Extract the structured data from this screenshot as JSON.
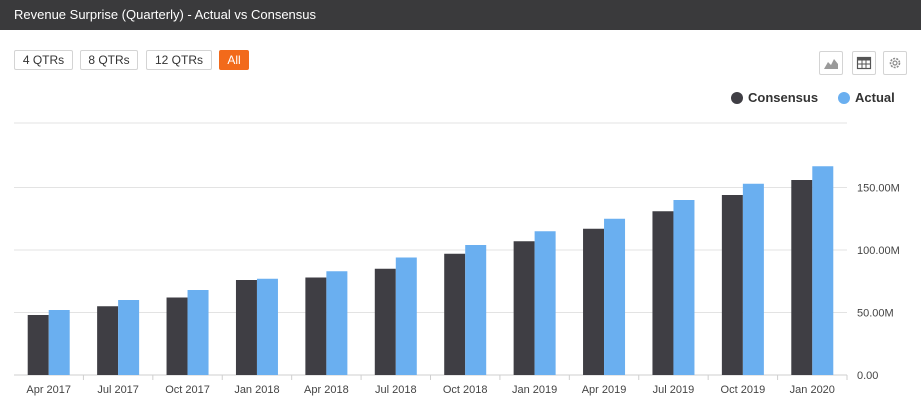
{
  "header": {
    "title": "Revenue Surprise (Quarterly) - Actual vs Consensus"
  },
  "range_buttons": [
    {
      "label": "4 QTRs",
      "active": false
    },
    {
      "label": "8 QTRs",
      "active": false
    },
    {
      "label": "12 QTRs",
      "active": false
    },
    {
      "label": "All",
      "active": true
    }
  ],
  "toolbar": {
    "icons": [
      "area-chart-icon",
      "table-icon",
      "gear-icon"
    ]
  },
  "colors": {
    "consensus": "#3f3e44",
    "actual": "#6aaff0",
    "accent": "#f26a1b",
    "grid": "#e3e3e3"
  },
  "chart_data": {
    "type": "bar",
    "categories": [
      "Apr 2017",
      "Jul 2017",
      "Oct 2017",
      "Jan 2018",
      "Apr 2018",
      "Jul 2018",
      "Oct 2018",
      "Jan 2019",
      "Apr 2019",
      "Jul 2019",
      "Oct 2019",
      "Jan 2020"
    ],
    "series": [
      {
        "name": "Consensus",
        "values": [
          48,
          55,
          62,
          76,
          78,
          85,
          97,
          107,
          117,
          131,
          144,
          156
        ]
      },
      {
        "name": "Actual",
        "values": [
          52,
          60,
          68,
          77,
          83,
          94,
          104,
          115,
          125,
          140,
          153,
          167
        ]
      }
    ],
    "y_ticks": [
      0,
      50,
      100,
      150
    ],
    "y_tick_labels": [
      "0.00",
      "50.00M",
      "100.00M",
      "150.00M"
    ],
    "ylim": [
      0,
      200
    ],
    "y_axis_side": "right",
    "grid": true,
    "legend": "top-right",
    "title": "",
    "xlabel": "",
    "ylabel": ""
  }
}
